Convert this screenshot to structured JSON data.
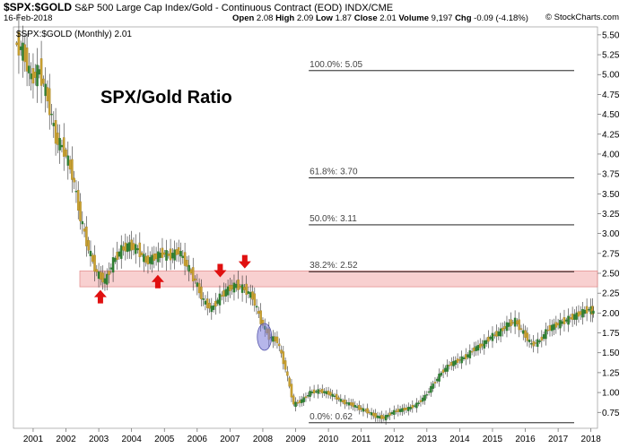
{
  "header": {
    "ticker": "$SPX:$GOLD",
    "description": "S&P 500 Large Cap Index/Gold - Continuous Contract (EOD)",
    "exchange": "INDX/CME",
    "date": "16-Feb-2018",
    "open_label": "Open",
    "open": "2.08",
    "high_label": "High",
    "high": "2.09",
    "low_label": "Low",
    "low": "1.87",
    "close_label": "Close",
    "close": "2.01",
    "volume_label": "Volume",
    "volume": "9,197",
    "chg_label": "Chg",
    "chg": "-0.09 (-4.18%)",
    "brand": "© StockCharts.com"
  },
  "chart_data": {
    "type": "candlestick",
    "title": "SPX/Gold Ratio",
    "legend": "$SPX:$GOLD (Monthly) 2.01",
    "x_tick_labels": [
      "2001",
      "2002",
      "2003",
      "2004",
      "2005",
      "2006",
      "2007",
      "2008",
      "2009",
      "2010",
      "2011",
      "2012",
      "2013",
      "2014",
      "2015",
      "2016",
      "2017",
      "2018"
    ],
    "y_tick_labels": [
      "0.75",
      "1.00",
      "1.25",
      "1.50",
      "1.75",
      "2.00",
      "2.25",
      "2.50",
      "2.75",
      "3.00",
      "3.25",
      "3.50",
      "3.75",
      "4.00",
      "4.25",
      "4.50",
      "4.75",
      "5.00",
      "5.25",
      "5.50"
    ],
    "xlim": [
      2000.4,
      2018.2
    ],
    "ylim": [
      0.55,
      5.6
    ],
    "points": [
      [
        2000.5,
        5.4
      ],
      [
        2000.75,
        5.3
      ],
      [
        2001.0,
        4.95
      ],
      [
        2001.25,
        5.05
      ],
      [
        2001.5,
        4.7
      ],
      [
        2001.75,
        4.2
      ],
      [
        2002.0,
        4.05
      ],
      [
        2002.25,
        3.75
      ],
      [
        2002.5,
        3.2
      ],
      [
        2002.75,
        2.8
      ],
      [
        2003.0,
        2.5
      ],
      [
        2003.25,
        2.4
      ],
      [
        2003.5,
        2.65
      ],
      [
        2003.75,
        2.8
      ],
      [
        2004.0,
        2.85
      ],
      [
        2004.25,
        2.8
      ],
      [
        2004.5,
        2.65
      ],
      [
        2004.75,
        2.7
      ],
      [
        2005.0,
        2.75
      ],
      [
        2005.25,
        2.72
      ],
      [
        2005.5,
        2.78
      ],
      [
        2005.75,
        2.6
      ],
      [
        2006.0,
        2.4
      ],
      [
        2006.25,
        2.15
      ],
      [
        2006.5,
        2.05
      ],
      [
        2006.75,
        2.2
      ],
      [
        2007.0,
        2.3
      ],
      [
        2007.25,
        2.35
      ],
      [
        2007.5,
        2.3
      ],
      [
        2007.75,
        2.2
      ],
      [
        2008.0,
        1.9
      ],
      [
        2008.25,
        1.7
      ],
      [
        2008.5,
        1.65
      ],
      [
        2008.75,
        1.3
      ],
      [
        2009.0,
        0.85
      ],
      [
        2009.25,
        0.9
      ],
      [
        2009.5,
        1.0
      ],
      [
        2009.75,
        1.02
      ],
      [
        2010.0,
        1.0
      ],
      [
        2010.25,
        0.95
      ],
      [
        2010.5,
        0.88
      ],
      [
        2010.75,
        0.85
      ],
      [
        2011.0,
        0.8
      ],
      [
        2011.25,
        0.76
      ],
      [
        2011.5,
        0.7
      ],
      [
        2011.75,
        0.68
      ],
      [
        2012.0,
        0.75
      ],
      [
        2012.25,
        0.78
      ],
      [
        2012.5,
        0.8
      ],
      [
        2012.75,
        0.85
      ],
      [
        2013.0,
        0.95
      ],
      [
        2013.25,
        1.1
      ],
      [
        2013.5,
        1.25
      ],
      [
        2013.75,
        1.35
      ],
      [
        2014.0,
        1.4
      ],
      [
        2014.25,
        1.45
      ],
      [
        2014.5,
        1.55
      ],
      [
        2014.75,
        1.6
      ],
      [
        2015.0,
        1.7
      ],
      [
        2015.25,
        1.75
      ],
      [
        2015.5,
        1.85
      ],
      [
        2015.75,
        1.9
      ],
      [
        2016.0,
        1.75
      ],
      [
        2016.25,
        1.6
      ],
      [
        2016.5,
        1.65
      ],
      [
        2016.75,
        1.8
      ],
      [
        2017.0,
        1.85
      ],
      [
        2017.25,
        1.9
      ],
      [
        2017.5,
        1.95
      ],
      [
        2017.75,
        2.0
      ],
      [
        2018.0,
        2.05
      ],
      [
        2018.1,
        2.01
      ]
    ],
    "fib_levels": [
      {
        "label": "100.0%: 5.05",
        "value": 5.05
      },
      {
        "label": "61.8%: 3.70",
        "value": 3.7
      },
      {
        "label": "50.0%: 3.11",
        "value": 3.11
      },
      {
        "label": "38.2%: 2.52",
        "value": 2.52
      },
      {
        "label": "0.0%: 0.62",
        "value": 0.62
      }
    ],
    "fib_start_x": 2009.4,
    "support_band": [
      2.33,
      2.53
    ],
    "up_arrows": [
      [
        2003.05,
        2.29
      ],
      [
        2004.8,
        2.48
      ]
    ],
    "down_arrows": [
      [
        2006.7,
        2.45
      ],
      [
        2007.45,
        2.56
      ]
    ],
    "ellipse": {
      "x": 2008.05,
      "y": 1.7
    },
    "colors": {
      "candle_up": "#2e7d32",
      "candle_down": "#c8a030",
      "band_fill": "#f7c8c8",
      "band_stroke": "#e08080",
      "arrow": "#e01010",
      "ellipse": "#7a7ad8"
    }
  }
}
